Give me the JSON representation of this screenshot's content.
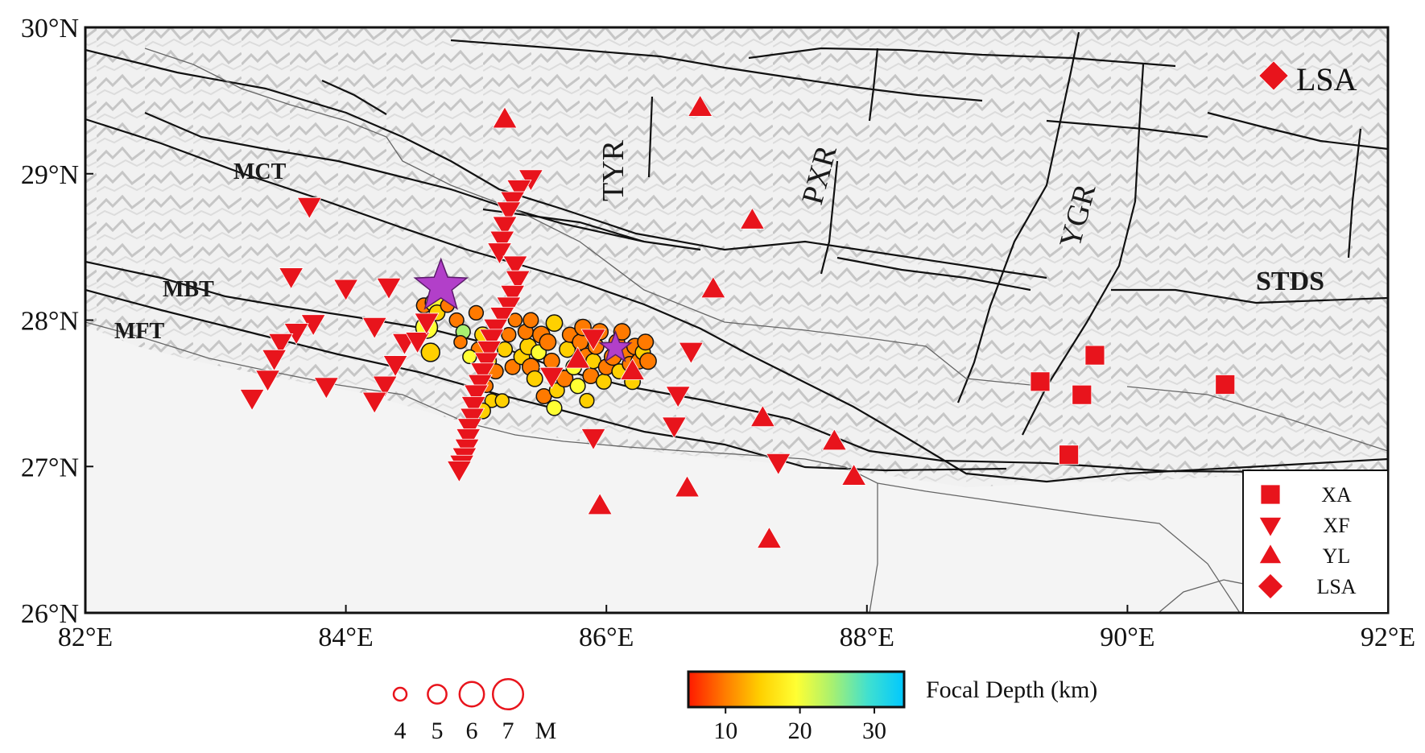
{
  "map": {
    "lon_ticks": [
      "82°E",
      "84°E",
      "86°E",
      "88°E",
      "90°E",
      "92°E"
    ],
    "lat_ticks": [
      "26°N",
      "27°N",
      "28°N",
      "29°N",
      "30°N"
    ],
    "extent": {
      "lon": [
        82,
        92
      ],
      "lat": [
        26,
        30
      ]
    },
    "fault_labels": {
      "mct": "MCT",
      "mbt": "MBT",
      "mft": "MFT",
      "stds": "STDS"
    },
    "rift_labels": {
      "tyr": "TYR",
      "pxr": "PXR",
      "ygr": "YGR"
    },
    "lsa_label": "LSA",
    "colors": {
      "station": "#e8141c",
      "mainshock": "#b23fc9",
      "fault": "#111111",
      "border": "#555555"
    },
    "mainshocks": [
      {
        "lon": 84.73,
        "lat": 28.23,
        "mag": 7.8
      },
      {
        "lon": 86.07,
        "lat": 27.81,
        "mag": 7.3
      }
    ]
  },
  "legend": {
    "items": [
      {
        "label": "XA",
        "symbol": "square"
      },
      {
        "label": "XF",
        "symbol": "triangle-down"
      },
      {
        "label": "YL",
        "symbol": "triangle-up"
      },
      {
        "label": "LSA",
        "symbol": "diamond"
      }
    ]
  },
  "magnitude_scale": {
    "values": [
      "4",
      "5",
      "6",
      "7"
    ],
    "unit": "M"
  },
  "colorbar": {
    "title": "Focal Depth (km)",
    "ticks": [
      "10",
      "20",
      "30"
    ],
    "range": [
      5,
      34
    ],
    "colors": [
      "#ff1a00",
      "#ff7a00",
      "#ffd000",
      "#ffff33",
      "#a8f070",
      "#40e0d0",
      "#00c8ff"
    ]
  },
  "stations": {
    "XA": [
      [
        89.33,
        27.58
      ],
      [
        89.75,
        27.76
      ],
      [
        89.65,
        27.49
      ],
      [
        90.75,
        27.56
      ],
      [
        89.55,
        27.08
      ]
    ],
    "YL": [
      [
        85.22,
        29.37
      ],
      [
        86.72,
        29.45
      ],
      [
        87.12,
        28.68
      ],
      [
        86.82,
        28.21
      ],
      [
        87.2,
        27.33
      ],
      [
        87.75,
        27.17
      ],
      [
        87.9,
        26.93
      ],
      [
        86.62,
        26.85
      ],
      [
        85.95,
        26.73
      ],
      [
        87.25,
        26.5
      ],
      [
        85.78,
        27.73
      ],
      [
        86.2,
        27.65
      ]
    ],
    "XF": [
      [
        83.72,
        28.78
      ],
      [
        83.58,
        28.3
      ],
      [
        84.0,
        28.22
      ],
      [
        84.33,
        28.23
      ],
      [
        83.75,
        27.98
      ],
      [
        84.22,
        27.96
      ],
      [
        83.62,
        27.92
      ],
      [
        83.5,
        27.85
      ],
      [
        84.45,
        27.85
      ],
      [
        84.55,
        27.86
      ],
      [
        84.62,
        27.99
      ],
      [
        84.38,
        27.7
      ],
      [
        83.45,
        27.74
      ],
      [
        83.4,
        27.6
      ],
      [
        83.85,
        27.55
      ],
      [
        84.3,
        27.56
      ],
      [
        84.22,
        27.45
      ],
      [
        83.28,
        27.47
      ],
      [
        86.55,
        27.49
      ],
      [
        86.65,
        27.79
      ],
      [
        86.52,
        27.28
      ],
      [
        85.9,
        27.2
      ],
      [
        87.32,
        27.03
      ],
      [
        85.9,
        27.88
      ],
      [
        85.58,
        27.62
      ],
      [
        85.42,
        28.97
      ],
      [
        85.33,
        28.9
      ],
      [
        85.28,
        28.82
      ],
      [
        85.25,
        28.75
      ],
      [
        85.22,
        28.65
      ],
      [
        85.2,
        28.55
      ],
      [
        85.18,
        28.47
      ],
      [
        85.3,
        28.38
      ],
      [
        85.32,
        28.28
      ],
      [
        85.28,
        28.18
      ],
      [
        85.25,
        28.1
      ],
      [
        85.2,
        28.03
      ],
      [
        85.15,
        27.95
      ],
      [
        85.12,
        27.88
      ],
      [
        85.1,
        27.8
      ],
      [
        85.08,
        27.72
      ],
      [
        85.05,
        27.65
      ],
      [
        85.03,
        27.57
      ],
      [
        85.0,
        27.5
      ],
      [
        84.98,
        27.42
      ],
      [
        84.97,
        27.34
      ],
      [
        84.95,
        27.27
      ],
      [
        84.94,
        27.2
      ],
      [
        84.93,
        27.13
      ],
      [
        84.91,
        27.07
      ],
      [
        84.89,
        27.02
      ],
      [
        84.87,
        26.98
      ]
    ]
  },
  "events": [
    [
      84.6,
      28.1,
      10,
      4.5
    ],
    [
      84.62,
      27.95,
      18,
      5.5
    ],
    [
      84.68,
      28.12,
      20,
      5.0
    ],
    [
      84.7,
      28.05,
      14,
      4.6
    ],
    [
      84.78,
      28.1,
      12,
      4.3
    ],
    [
      84.65,
      27.78,
      16,
      5.0
    ],
    [
      84.85,
      28.0,
      8,
      4.4
    ],
    [
      84.9,
      27.92,
      22,
      4.4
    ],
    [
      84.88,
      27.85,
      12,
      4.2
    ],
    [
      85.0,
      28.05,
      10,
      4.4
    ],
    [
      85.05,
      27.9,
      14,
      4.6
    ],
    [
      85.02,
      27.8,
      10,
      4.5
    ],
    [
      84.95,
      27.75,
      18,
      4.3
    ],
    [
      85.1,
      27.72,
      14,
      4.4
    ],
    [
      85.15,
      27.65,
      12,
      4.5
    ],
    [
      85.08,
      27.55,
      10,
      4.2
    ],
    [
      85.12,
      27.45,
      16,
      4.3
    ],
    [
      85.05,
      27.38,
      15,
      4.6
    ],
    [
      85.22,
      27.8,
      14,
      4.5
    ],
    [
      85.25,
      27.9,
      10,
      4.4
    ],
    [
      85.3,
      28.0,
      12,
      4.3
    ],
    [
      85.28,
      27.68,
      8,
      4.5
    ],
    [
      85.35,
      27.75,
      14,
      4.6
    ],
    [
      85.4,
      27.82,
      16,
      4.7
    ],
    [
      85.38,
      27.92,
      12,
      4.5
    ],
    [
      85.42,
      27.68,
      10,
      4.8
    ],
    [
      85.45,
      27.6,
      14,
      4.6
    ],
    [
      85.48,
      27.78,
      18,
      4.5
    ],
    [
      85.5,
      27.9,
      12,
      4.8
    ],
    [
      85.55,
      27.85,
      10,
      4.7
    ],
    [
      85.58,
      27.72,
      8,
      4.6
    ],
    [
      85.6,
      27.98,
      14,
      4.7
    ],
    [
      85.52,
      27.48,
      12,
      4.5
    ],
    [
      85.62,
      27.52,
      16,
      4.5
    ],
    [
      85.68,
      27.6,
      10,
      4.7
    ],
    [
      85.7,
      27.8,
      14,
      4.6
    ],
    [
      85.72,
      27.9,
      12,
      4.5
    ],
    [
      85.75,
      27.68,
      20,
      4.6
    ],
    [
      85.78,
      27.55,
      18,
      4.5
    ],
    [
      85.8,
      27.85,
      12,
      4.6
    ],
    [
      85.82,
      27.95,
      10,
      4.7
    ],
    [
      85.85,
      27.75,
      8,
      4.8
    ],
    [
      85.88,
      27.62,
      12,
      4.6
    ],
    [
      85.9,
      27.72,
      16,
      4.5
    ],
    [
      85.92,
      27.82,
      10,
      4.6
    ],
    [
      85.95,
      27.92,
      12,
      4.7
    ],
    [
      85.98,
      27.58,
      14,
      4.5
    ],
    [
      86.0,
      27.68,
      10,
      4.6
    ],
    [
      86.05,
      27.75,
      8,
      4.8
    ],
    [
      86.08,
      27.85,
      12,
      4.6
    ],
    [
      86.1,
      27.65,
      14,
      4.5
    ],
    [
      86.12,
      27.92,
      10,
      4.7
    ],
    [
      86.15,
      27.78,
      12,
      4.6
    ],
    [
      86.18,
      27.7,
      8,
      4.5
    ],
    [
      86.2,
      27.58,
      14,
      4.6
    ],
    [
      86.22,
      27.82,
      10,
      4.7
    ],
    [
      86.25,
      27.72,
      12,
      4.6
    ],
    [
      86.28,
      27.78,
      16,
      4.5
    ],
    [
      86.3,
      27.85,
      10,
      4.6
    ],
    [
      86.32,
      27.72,
      12,
      4.7
    ],
    [
      85.6,
      27.4,
      20,
      4.5
    ],
    [
      85.85,
      27.45,
      14,
      4.4
    ],
    [
      85.2,
      27.45,
      16,
      4.3
    ],
    [
      85.42,
      28.0,
      12,
      4.5
    ]
  ]
}
